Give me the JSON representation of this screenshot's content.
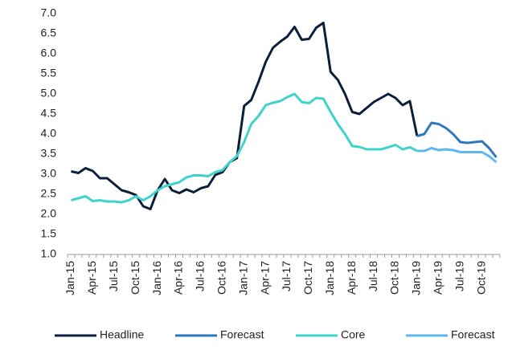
{
  "chart_data": {
    "type": "line",
    "categories": [
      "Jan-15",
      null,
      null,
      "Apr-15",
      null,
      null,
      "Jul-15",
      null,
      null,
      "Oct-15",
      null,
      null,
      "Jan-16",
      null,
      null,
      "Apr-16",
      null,
      null,
      "Jul-16",
      null,
      null,
      "Oct-16",
      null,
      null,
      "Jan-17",
      null,
      null,
      "Apr-17",
      null,
      null,
      "Jul-17",
      null,
      null,
      "Oct-17",
      null,
      null,
      "Jan-18",
      null,
      null,
      "Apr-18",
      null,
      null,
      "Jul-18",
      null,
      null,
      "Oct-18",
      null,
      null,
      "Jan-19",
      null,
      null,
      "Apr-19",
      null,
      null,
      "Jul-19",
      null,
      null,
      "Oct-19",
      null,
      null
    ],
    "series": [
      {
        "name": "Headline",
        "color": "#0b1f3d",
        "values": [
          3.07,
          3.03,
          3.15,
          3.08,
          2.9,
          2.9,
          2.75,
          2.6,
          2.55,
          2.48,
          2.2,
          2.13,
          2.6,
          2.88,
          2.6,
          2.53,
          2.62,
          2.55,
          2.65,
          2.7,
          2.98,
          3.05,
          3.3,
          3.4,
          4.7,
          4.85,
          5.3,
          5.8,
          6.15,
          6.3,
          6.43,
          6.67,
          6.35,
          6.37,
          6.65,
          6.77,
          5.55,
          5.35,
          5.0,
          4.55,
          4.5,
          4.65,
          4.8,
          4.9,
          5.0,
          4.9,
          4.72,
          4.82,
          3.95,
          null,
          null,
          null,
          null,
          null,
          null,
          null,
          null,
          null,
          null,
          null
        ]
      },
      {
        "name": "Forecast",
        "color": "#2f78bd",
        "values": [
          null,
          null,
          null,
          null,
          null,
          null,
          null,
          null,
          null,
          null,
          null,
          null,
          null,
          null,
          null,
          null,
          null,
          null,
          null,
          null,
          null,
          null,
          null,
          null,
          null,
          null,
          null,
          null,
          null,
          null,
          null,
          null,
          null,
          null,
          null,
          null,
          null,
          null,
          null,
          null,
          null,
          null,
          null,
          null,
          null,
          null,
          null,
          null,
          3.95,
          4.0,
          4.28,
          4.25,
          4.15,
          4.0,
          3.8,
          3.78,
          3.8,
          3.82,
          3.65,
          3.42
        ]
      },
      {
        "name": "Core",
        "color": "#3fd3cb",
        "values": [
          2.35,
          2.4,
          2.45,
          2.33,
          2.35,
          2.32,
          2.32,
          2.3,
          2.35,
          2.45,
          2.35,
          2.45,
          2.6,
          2.7,
          2.75,
          2.8,
          2.92,
          2.97,
          2.97,
          2.95,
          3.05,
          3.1,
          3.3,
          3.45,
          3.8,
          4.25,
          4.45,
          4.72,
          4.78,
          4.82,
          4.92,
          5.0,
          4.8,
          4.77,
          4.9,
          4.88,
          4.55,
          4.25,
          4.0,
          3.7,
          3.68,
          3.62,
          3.62,
          3.62,
          3.67,
          3.73,
          3.62,
          3.67,
          3.58,
          null,
          null,
          null,
          null,
          null,
          null,
          null,
          null,
          null,
          null,
          null
        ]
      },
      {
        "name": "Forecast",
        "color": "#5cb8ee",
        "values": [
          null,
          null,
          null,
          null,
          null,
          null,
          null,
          null,
          null,
          null,
          null,
          null,
          null,
          null,
          null,
          null,
          null,
          null,
          null,
          null,
          null,
          null,
          null,
          null,
          null,
          null,
          null,
          null,
          null,
          null,
          null,
          null,
          null,
          null,
          null,
          null,
          null,
          null,
          null,
          null,
          null,
          null,
          null,
          null,
          null,
          null,
          null,
          null,
          3.58,
          3.58,
          3.65,
          3.6,
          3.62,
          3.6,
          3.55,
          3.55,
          3.55,
          3.55,
          3.45,
          3.3
        ]
      }
    ],
    "ylim": [
      1,
      7
    ],
    "yticks": [
      {
        "value": 1,
        "label": "1.0"
      },
      {
        "value": 1.5,
        "label": "1.5"
      },
      {
        "value": 2,
        "label": "2.0"
      },
      {
        "value": 2.5,
        "label": "2.5"
      },
      {
        "value": 3,
        "label": "3.0"
      },
      {
        "value": 3.5,
        "label": "3.5"
      },
      {
        "value": 4,
        "label": "4.0"
      },
      {
        "value": 4.5,
        "label": "4.5"
      },
      {
        "value": 5,
        "label": "5.0"
      },
      {
        "value": 5.5,
        "label": "5.5"
      },
      {
        "value": 6,
        "label": "6.0"
      },
      {
        "value": 6.5,
        "label": "6.5"
      },
      {
        "value": 7,
        "label": "7.0"
      }
    ],
    "grid": false,
    "legend": "bottom"
  }
}
